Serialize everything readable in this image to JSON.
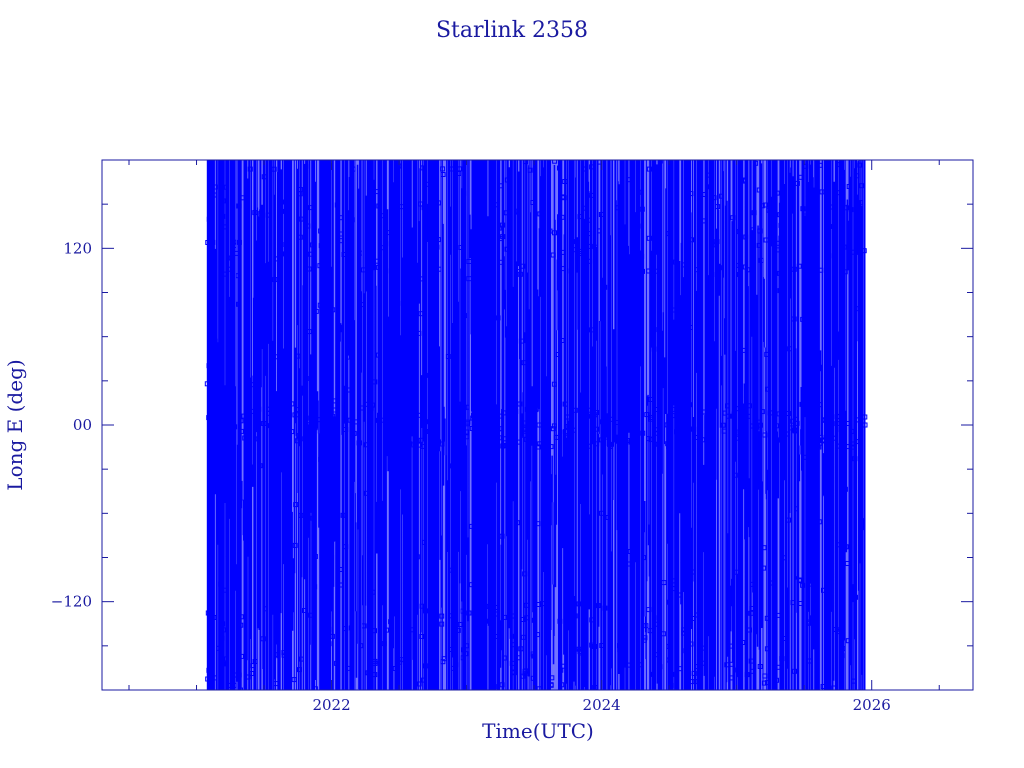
{
  "chart_data": {
    "type": "line",
    "title": "Starlink 2358",
    "xlabel": "Time(UTC)",
    "ylabel": "Long E (deg)",
    "xlim": [
      2020.3,
      2026.75
    ],
    "ylim": [
      -180,
      180
    ],
    "x_ticks": [
      {
        "value": 2022,
        "label": "2022"
      },
      {
        "value": 2024,
        "label": "2024"
      },
      {
        "value": 2026,
        "label": "2026"
      }
    ],
    "y_ticks": [
      {
        "value": 120,
        "label": "120"
      },
      {
        "value": 0,
        "label": "00"
      },
      {
        "value": -120,
        "label": "−120"
      }
    ],
    "x_minor_step": 0.5,
    "y_minor_step": 30,
    "grid": false,
    "series": [
      {
        "color": "#0000ff",
        "marker": "square",
        "x_start": 2021.08,
        "x_end": 2025.95,
        "y_range": [
          -180,
          180
        ],
        "description_values": "dense wrapping longitude track spanning full range",
        "sample_points": [
          {
            "x": 2021.08,
            "y": 28
          },
          {
            "x": 2021.09,
            "y": 5
          },
          {
            "x": 2021.1,
            "y": -118
          },
          {
            "x": 2021.12,
            "y": 124
          },
          {
            "x": 2021.13,
            "y": 107
          },
          {
            "x": 2021.2,
            "y": -20
          },
          {
            "x": 2021.5,
            "y": 60
          },
          {
            "x": 2022.0,
            "y": -90
          },
          {
            "x": 2022.5,
            "y": 10
          },
          {
            "x": 2023.0,
            "y": -150
          },
          {
            "x": 2023.5,
            "y": 8
          },
          {
            "x": 2024.0,
            "y": -60
          },
          {
            "x": 2024.5,
            "y": 130
          },
          {
            "x": 2025.0,
            "y": -100
          },
          {
            "x": 2025.5,
            "y": 12
          },
          {
            "x": 2025.95,
            "y": 0
          }
        ]
      }
    ]
  }
}
